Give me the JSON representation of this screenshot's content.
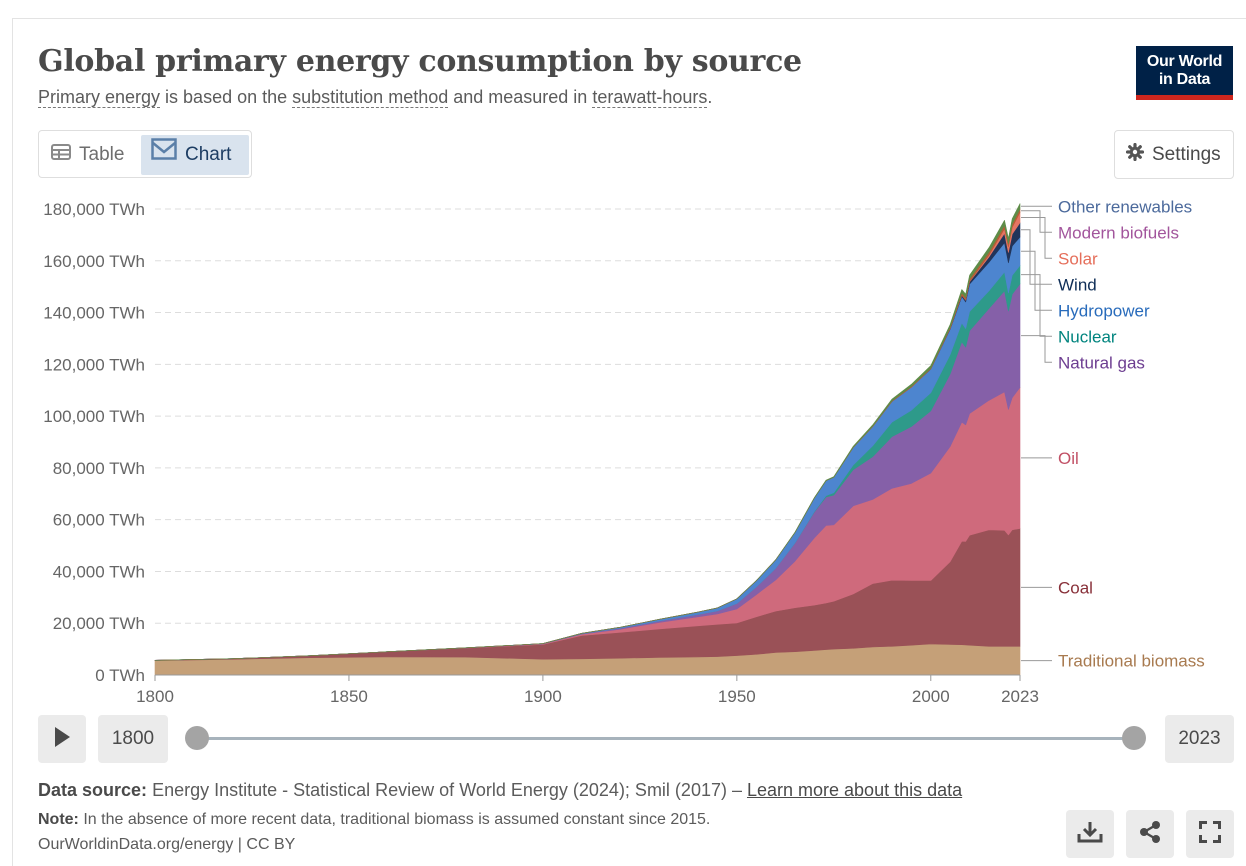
{
  "header": {
    "title": "Global primary energy consumption by source",
    "subtitle_link1": "Primary energy",
    "subtitle_text1": " is based on the ",
    "subtitle_link2": "substitution method",
    "subtitle_text2": " and measured in ",
    "subtitle_link3": "terawatt-hours",
    "subtitle_text3": ".",
    "logo_line1": "Our World",
    "logo_line2": "in Data"
  },
  "tabs": {
    "table_label": "Table",
    "chart_label": "Chart",
    "active": "chart"
  },
  "settings_label": "Settings",
  "timeline": {
    "start_year": "1800",
    "end_year": "2023"
  },
  "footer": {
    "source_label": "Data source:",
    "source_text": "Energy Institute - Statistical Review of World Energy (2024); Smil (2017) – ",
    "source_link": "Learn more about this data",
    "note_label": "Note:",
    "note_text": "In the absence of more recent data, traditional biomass is assumed constant since 2015.",
    "credit": "OurWorldinData.org/energy | CC BY"
  },
  "icons": {
    "table": "table-icon",
    "chart": "chart-icon",
    "settings": "gear-icon",
    "play": "play-icon",
    "download": "download-icon",
    "share": "share-icon",
    "fullscreen": "fullscreen-icon"
  },
  "chart_data": {
    "type": "area",
    "stacked": true,
    "unit": "TWh",
    "ylim": [
      0,
      180000
    ],
    "y_ticks": [
      0,
      20000,
      40000,
      60000,
      80000,
      100000,
      120000,
      140000,
      160000,
      180000
    ],
    "y_tick_labels": [
      "0 TWh",
      "20,000 TWh",
      "40,000 TWh",
      "60,000 TWh",
      "80,000 TWh",
      "100,000 TWh",
      "120,000 TWh",
      "140,000 TWh",
      "160,000 TWh",
      "180,000 TWh"
    ],
    "x_ticks": [
      1800,
      1850,
      1900,
      1950,
      2000,
      2023
    ],
    "x_tick_labels": [
      "1800",
      "1850",
      "1900",
      "1950",
      "2000",
      "2023"
    ],
    "xlim": [
      1800,
      2023
    ],
    "grid": "horizontal dashed",
    "legend": "right, labels at series ends",
    "x": [
      1800,
      1820,
      1840,
      1860,
      1880,
      1900,
      1910,
      1920,
      1930,
      1940,
      1945,
      1950,
      1955,
      1960,
      1965,
      1970,
      1973,
      1975,
      1980,
      1985,
      1990,
      1995,
      2000,
      2005,
      2008,
      2009,
      2010,
      2015,
      2019,
      2020,
      2021,
      2023
    ],
    "series": [
      {
        "name": "Traditional biomass",
        "color": "#c5a078",
        "text_color": "#a87a4f",
        "values": [
          5560,
          6050,
          6700,
          7000,
          6900,
          6110,
          6250,
          6500,
          6800,
          7000,
          7100,
          7500,
          8000,
          8700,
          9000,
          9500,
          9800,
          10000,
          10300,
          10800,
          11100,
          11500,
          12000,
          11800,
          11700,
          11600,
          11500,
          11100,
          11100,
          11100,
          11100,
          11100
        ]
      },
      {
        "name": "Coal",
        "color": "#9a5157",
        "text_color": "#883039",
        "values": [
          100,
          250,
          750,
          2000,
          3500,
          5728,
          9000,
          10000,
          11000,
          12000,
          12500,
          12600,
          14500,
          16000,
          17000,
          17500,
          18000,
          18500,
          21000,
          24500,
          25500,
          25000,
          24500,
          32000,
          40000,
          40000,
          42500,
          45000,
          44800,
          43000,
          45000,
          45500
        ]
      },
      {
        "name": "Oil",
        "color": "#cf6a7c",
        "text_color": "#c15065",
        "values": [
          0,
          0,
          0,
          0,
          80,
          181,
          500,
          1200,
          2500,
          3500,
          4000,
          5400,
          8500,
          12000,
          18000,
          26000,
          30000,
          29500,
          34000,
          32500,
          35500,
          37500,
          41500,
          44500,
          46000,
          45000,
          47000,
          50000,
          53500,
          48500,
          51000,
          54500
        ]
      },
      {
        "name": "Natural gas",
        "color": "#8560a8",
        "text_color": "#6d3e91",
        "values": [
          0,
          0,
          0,
          0,
          10,
          64,
          200,
          400,
          600,
          900,
          1200,
          2100,
          3000,
          4500,
          7000,
          10000,
          11000,
          11500,
          14000,
          16500,
          20000,
          22000,
          24000,
          28000,
          31000,
          30000,
          32000,
          35500,
          39000,
          38000,
          40000,
          40000
        ]
      },
      {
        "name": "Nuclear",
        "color": "#2e9a8a",
        "text_color": "#00847e",
        "values": [
          0,
          0,
          0,
          0,
          0,
          0,
          0,
          0,
          0,
          0,
          0,
          0,
          0,
          10,
          60,
          200,
          500,
          900,
          1800,
          4200,
          5600,
          6300,
          7000,
          7500,
          7300,
          7200,
          7400,
          6800,
          7300,
          7000,
          7300,
          7100
        ]
      },
      {
        "name": "Hydropower",
        "color": "#4d85cf",
        "text_color": "#286bbb",
        "values": [
          0,
          0,
          0,
          0,
          0,
          40,
          150,
          350,
          600,
          900,
          1100,
          1800,
          2400,
          3200,
          4000,
          5200,
          5800,
          6000,
          6800,
          7400,
          8000,
          8900,
          9200,
          9800,
          10200,
          10300,
          10600,
          11000,
          11300,
          11600,
          11300,
          11000
        ]
      },
      {
        "name": "Wind",
        "color": "#21345a",
        "text_color": "#0f2e57",
        "values": [
          0,
          0,
          0,
          0,
          0,
          0,
          0,
          0,
          0,
          0,
          0,
          0,
          0,
          0,
          0,
          0,
          0,
          0,
          0,
          0,
          10,
          20,
          80,
          250,
          520,
          680,
          870,
          2100,
          3600,
          4000,
          4600,
          5500
        ]
      },
      {
        "name": "Solar",
        "color": "#e57564",
        "text_color": "#e56e5a",
        "values": [
          0,
          0,
          0,
          0,
          0,
          0,
          0,
          0,
          0,
          0,
          0,
          0,
          0,
          0,
          0,
          0,
          0,
          0,
          0,
          0,
          1,
          2,
          3,
          12,
          40,
          60,
          100,
          690,
          1800,
          2200,
          2600,
          4000
        ]
      },
      {
        "name": "Modern biofuels",
        "color": "#b85d36",
        "text_color": "#a2559c",
        "values": [
          0,
          0,
          0,
          0,
          0,
          0,
          0,
          0,
          0,
          0,
          0,
          0,
          0,
          0,
          0,
          0,
          0,
          0,
          80,
          150,
          220,
          250,
          280,
          450,
          850,
          900,
          1000,
          1150,
          1300,
          1200,
          1250,
          1300
        ]
      },
      {
        "name": "Other renewables",
        "color": "#5e8c48",
        "text_color": "#4c6a9c",
        "values": [
          0,
          0,
          0,
          0,
          0,
          0,
          0,
          0,
          0,
          0,
          0,
          0,
          40,
          60,
          90,
          150,
          200,
          250,
          350,
          500,
          650,
          800,
          950,
          1100,
          1300,
          1350,
          1450,
          1750,
          1950,
          2000,
          2050,
          2100
        ]
      }
    ]
  }
}
